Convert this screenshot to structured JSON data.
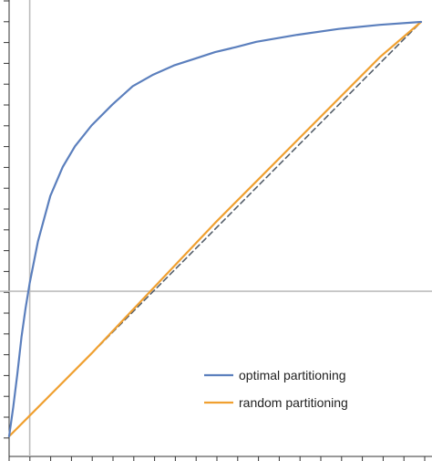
{
  "chart_data": {
    "type": "line",
    "title": "",
    "xlabel": "",
    "ylabel": "",
    "xlim": [
      0,
      1
    ],
    "ylim": [
      0,
      1
    ],
    "grid": false,
    "reference_lines": {
      "x": 0.05,
      "y": 0.35
    },
    "legend": {
      "placement": "bottom-right",
      "entries": [
        {
          "label": "optimal partitioning",
          "color": "#5b7fbd"
        },
        {
          "label": "random partitioning",
          "color": "#f0a030"
        }
      ]
    },
    "series": [
      {
        "name": "optimal partitioning",
        "color": "#5b7fbd",
        "x": [
          0,
          0.01,
          0.02,
          0.03,
          0.04,
          0.05,
          0.07,
          0.1,
          0.13,
          0.16,
          0.2,
          0.25,
          0.3,
          0.35,
          0.4,
          0.45,
          0.5,
          0.55,
          0.6,
          0.7,
          0.8,
          0.9,
          1.0
        ],
        "values": [
          0,
          0.07,
          0.15,
          0.24,
          0.31,
          0.37,
          0.47,
          0.58,
          0.65,
          0.7,
          0.75,
          0.8,
          0.845,
          0.873,
          0.895,
          0.911,
          0.927,
          0.939,
          0.952,
          0.969,
          0.983,
          0.993,
          1.0
        ]
      },
      {
        "name": "random partitioning",
        "color": "#f0a030",
        "x": [
          0,
          0.05,
          0.1,
          0.2,
          0.3,
          0.4,
          0.5,
          0.6,
          0.7,
          0.8,
          0.9,
          1.0
        ],
        "values": [
          0,
          0.05,
          0.1,
          0.2,
          0.305,
          0.41,
          0.515,
          0.615,
          0.715,
          0.815,
          0.915,
          1.0
        ]
      },
      {
        "name": "",
        "style": "dashed",
        "color": "#555f6a",
        "x": [
          0,
          1
        ],
        "values": [
          0,
          1
        ]
      }
    ]
  }
}
